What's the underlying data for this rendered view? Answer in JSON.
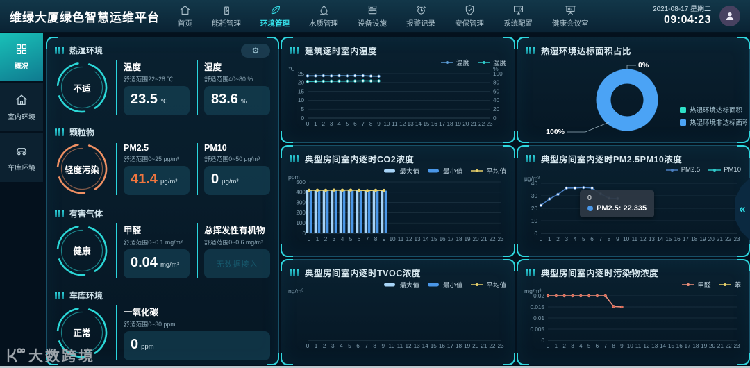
{
  "navbar": {
    "title": "维绿大厦绿色智慧运维平台",
    "date": "2021-08-17 星期二",
    "time": "09:04:23",
    "items": [
      {
        "key": "home",
        "label": "首页",
        "icon": "home-icon",
        "active": false
      },
      {
        "key": "energy",
        "label": "能耗管理",
        "icon": "energy-icon",
        "active": false
      },
      {
        "key": "environment",
        "label": "环境管理",
        "icon": "leaf-icon",
        "active": true
      },
      {
        "key": "water",
        "label": "水质管理",
        "icon": "water-icon",
        "active": false
      },
      {
        "key": "devices",
        "label": "设备设施",
        "icon": "device-icon",
        "active": false
      },
      {
        "key": "alarms",
        "label": "报警记录",
        "icon": "alarm-icon",
        "active": false
      },
      {
        "key": "security",
        "label": "安保管理",
        "icon": "shield-icon",
        "active": false
      },
      {
        "key": "system",
        "label": "系统配置",
        "icon": "system-icon",
        "active": false
      },
      {
        "key": "meeting",
        "label": "健康会议室",
        "icon": "meeting-icon",
        "active": false
      }
    ]
  },
  "sidebar": {
    "items": [
      {
        "key": "overview",
        "label": "概况",
        "icon": "grid-icon",
        "active": true
      },
      {
        "key": "indoor",
        "label": "室内环境",
        "icon": "indoor-icon",
        "active": false
      },
      {
        "key": "garage",
        "label": "车库环境",
        "icon": "garage-icon",
        "active": false
      }
    ]
  },
  "overview": {
    "settings_icon": "gear-icon",
    "settings_glyph": "⚙",
    "sections": [
      {
        "key": "thermal",
        "title": "热湿环境",
        "gauge": {
          "status": "不适",
          "color": "#2bd7d7"
        },
        "metrics": [
          {
            "key": "temperature",
            "name": "温度",
            "range": "舒适范围22~28 ℃",
            "value": "23.5",
            "unit": "℃",
            "highlight": false
          },
          {
            "key": "humidity",
            "name": "湿度",
            "range": "舒适范围40~80 %",
            "value": "83.6",
            "unit": "%",
            "highlight": false
          }
        ]
      },
      {
        "key": "particulate",
        "title": "颗粒物",
        "gauge": {
          "status": "轻度污染",
          "color": "#ef9063"
        },
        "metrics": [
          {
            "key": "pm25",
            "name": "PM2.5",
            "range": "舒适范围0~25 μg/m³",
            "value": "41.4",
            "unit": "μg/m³",
            "highlight": true
          },
          {
            "key": "pm10",
            "name": "PM10",
            "range": "舒适范围0~50 μg/m³",
            "value": "0",
            "unit": "μg/m³",
            "highlight": false
          }
        ]
      },
      {
        "key": "gases",
        "title": "有害气体",
        "gauge": {
          "status": "健康",
          "color": "#2bd7d7"
        },
        "metrics": [
          {
            "key": "formaldehyde",
            "name": "甲醛",
            "range": "舒适范围0~0.1 mg/m³",
            "value": "0.04",
            "unit": "mg/m³",
            "highlight": false
          },
          {
            "key": "tvoc",
            "name": "总挥发性有机物",
            "range": "舒适范围0~0.6 mg/m³",
            "no_data": "无数据接入",
            "highlight": false
          }
        ]
      },
      {
        "key": "garage",
        "title": "车库环境",
        "gauge": {
          "status": "正常",
          "color": "#2bd7d7"
        },
        "metrics": [
          {
            "key": "co",
            "name": "一氧化碳",
            "range": "舒适范围0~30 ppm",
            "value": "0",
            "unit": "ppm",
            "highlight": false
          }
        ]
      }
    ]
  },
  "hours": [
    0,
    1,
    2,
    3,
    4,
    5,
    6,
    7,
    8,
    9,
    10,
    11,
    12,
    13,
    14,
    15,
    16,
    17,
    18,
    19,
    20,
    21,
    22,
    23
  ],
  "chart_data": [
    {
      "type": "line",
      "title": "建筑逐时室内温度",
      "y_left": {
        "unit": "℃",
        "max": 25,
        "ticks": [
          0,
          5,
          10,
          15,
          20,
          25
        ]
      },
      "y_right": {
        "unit": "%",
        "max": 100,
        "ticks": [
          0,
          20,
          40,
          60,
          80,
          100
        ]
      },
      "series": [
        {
          "name": "温度",
          "color": "#5b9bd5",
          "axis": "left",
          "kind": "line",
          "values": [
            23.7,
            23.7,
            23.8,
            23.7,
            23.8,
            23.7,
            23.8,
            23.8,
            23.6,
            23.5
          ]
        },
        {
          "name": "湿度",
          "color": "#2fc9c9",
          "axis": "right",
          "kind": "line",
          "values": [
            82.5,
            82.8,
            83.0,
            83.0,
            83.2,
            83.3,
            83.4,
            83.8,
            83.5,
            83.6
          ]
        }
      ]
    },
    {
      "type": "bar",
      "title": "典型房间室内逐时CO2浓度",
      "y_left": {
        "unit": "ppm",
        "max": 500,
        "ticks": [
          0,
          100,
          200,
          300,
          400,
          500
        ]
      },
      "series": [
        {
          "name": "最大值",
          "color": "#a8d4f7",
          "kind": "bar",
          "values": [
            422,
            423,
            422,
            424,
            423,
            424,
            422,
            419,
            422,
            421
          ]
        },
        {
          "name": "最小值",
          "color": "#4a97e8",
          "kind": "bar",
          "values": [
            416,
            417,
            416,
            418,
            417,
            418,
            416,
            412,
            416,
            415
          ]
        },
        {
          "name": "平均值",
          "color": "#e8d06a",
          "kind": "line",
          "marker": "#e8d06a",
          "values": [
            419,
            420,
            419,
            421,
            420,
            421,
            419,
            416,
            419,
            418
          ]
        }
      ]
    },
    {
      "type": "line",
      "title": "典型房间室内逐时TVOC浓度",
      "y_left": {
        "unit": "ng/m³",
        "max": 1,
        "ticks": []
      },
      "series": [
        {
          "name": "最大值",
          "color": "#a8d4f7",
          "kind": "bar",
          "values": []
        },
        {
          "name": "最小值",
          "color": "#4a97e8",
          "kind": "bar",
          "values": []
        },
        {
          "name": "平均值",
          "color": "#e8d06a",
          "kind": "line",
          "values": []
        }
      ]
    },
    {
      "type": "pie",
      "title": "热湿环境达标面积占比",
      "slices": [
        {
          "name": "热湿环境达标面积",
          "label": "0%",
          "value": 0,
          "color": "#2ee0c8"
        },
        {
          "name": "热湿环境非达标面积",
          "label": "100%",
          "value": 100,
          "color": "#4ba3f5"
        }
      ]
    },
    {
      "type": "line",
      "title": "典型房间室内逐时PM2.5PM10浓度",
      "y_left": {
        "unit": "μg/m³",
        "max": 40,
        "ticks": [
          0,
          10,
          20,
          30,
          40
        ]
      },
      "series": [
        {
          "name": "PM2.5",
          "color": "#4a7fc1",
          "kind": "line",
          "values": [
            22.335,
            27.5,
            31.2,
            36.2,
            36.2,
            36.6,
            36.2,
            31.6,
            28,
            27.8
          ]
        },
        {
          "name": "PM10",
          "color": "#2fc9c9",
          "kind": "line",
          "values": []
        }
      ],
      "tooltip": {
        "header": "0",
        "series": "PM2.5",
        "value": "22.335",
        "dot_color": "#4a97e8"
      }
    },
    {
      "type": "line",
      "title": "典型房间室内逐时污染物浓度",
      "y_left": {
        "unit": "mg/m³",
        "max": 0.02,
        "ticks": [
          0,
          0.005,
          0.01,
          0.015,
          0.02
        ]
      },
      "series": [
        {
          "name": "甲醛",
          "color": "#ef8f7a",
          "kind": "line",
          "marker": "#d95f4c",
          "values": [
            0.02,
            0.02,
            0.02,
            0.02,
            0.02,
            0.02,
            0.02,
            0.02,
            0.0152,
            0.015
          ]
        },
        {
          "name": "苯",
          "color": "#e8d06a",
          "kind": "line",
          "values": []
        }
      ]
    }
  ],
  "watermark": {
    "text": "大数跨境"
  },
  "collapse": {
    "glyph": "«"
  }
}
